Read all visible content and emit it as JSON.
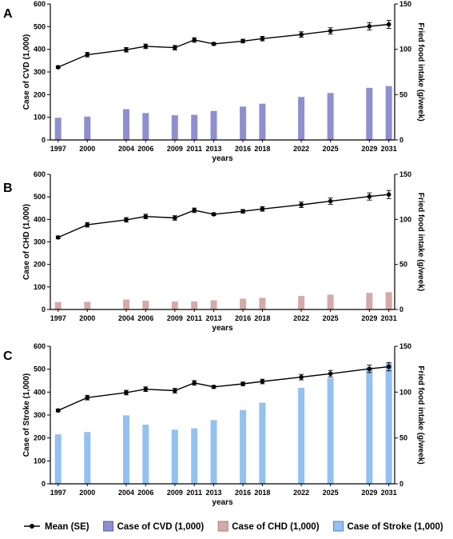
{
  "chart_data": [
    {
      "panel": "A",
      "type": "bar",
      "x": [
        "1997",
        "2000",
        "2004",
        "2006",
        "2009",
        "2011",
        "2013",
        "2016",
        "2018",
        "2022",
        "2025",
        "2029",
        "2031"
      ],
      "xlabel": "years",
      "ylabel_left": "Case of CVD (1,000)",
      "ylabel_right": "Fried food intake (g/week)",
      "ylim_left": [
        0,
        600
      ],
      "ylim_right": [
        0,
        150
      ],
      "left_ticks": [
        0,
        100,
        200,
        300,
        400,
        500,
        600
      ],
      "right_ticks": [
        0,
        50,
        100,
        150
      ],
      "bar_series": {
        "name": "Case of CVD (1,000)",
        "color": "#8e8fcf",
        "values": [
          98,
          103,
          136,
          119,
          109,
          111,
          128,
          147,
          160,
          190,
          207,
          230,
          238
        ]
      },
      "line_series": {
        "name": "Mean (SE)",
        "values": [
          80.3,
          94.1,
          99.5,
          103.3,
          101.8,
          110.3,
          106.0,
          109.1,
          111.8,
          116.3,
          120.3,
          125.4,
          127.5
        ],
        "se": [
          1.5,
          2.5,
          2.5,
          2.5,
          2.5,
          2.5,
          1.5,
          2.0,
          2.5,
          3.0,
          3.5,
          4.0,
          4.5
        ]
      }
    },
    {
      "panel": "B",
      "type": "bar",
      "x": [
        "1997",
        "2000",
        "2004",
        "2006",
        "2009",
        "2011",
        "2013",
        "2016",
        "2018",
        "2022",
        "2025",
        "2029",
        "2031"
      ],
      "xlabel": "years",
      "ylabel_left": "Case of CHD (1,000)",
      "ylabel_right": "Fried food intake (g/week)",
      "ylim_left": [
        0,
        600
      ],
      "ylim_right": [
        0,
        150
      ],
      "left_ticks": [
        0,
        100,
        200,
        300,
        400,
        500,
        600
      ],
      "right_ticks": [
        0,
        50,
        100,
        150
      ],
      "bar_series": {
        "name": "Case of CHD (1,000)",
        "color": "#d4aaa8",
        "values": [
          33,
          34,
          44,
          39,
          35,
          36,
          41,
          48,
          52,
          60,
          66,
          74,
          77
        ]
      },
      "line_series": {
        "name": "Mean (SE)",
        "values": [
          80.0,
          94.0,
          99.5,
          103.2,
          101.6,
          110.1,
          105.7,
          109.0,
          111.6,
          116.2,
          120.2,
          125.4,
          127.6
        ],
        "se": [
          1.5,
          2.5,
          2.5,
          2.5,
          2.5,
          2.5,
          1.5,
          2.0,
          2.5,
          3.0,
          3.5,
          4.0,
          4.5
        ]
      }
    },
    {
      "panel": "C",
      "type": "bar",
      "x": [
        "1997",
        "2000",
        "2004",
        "2006",
        "2009",
        "2011",
        "2013",
        "2016",
        "2018",
        "2022",
        "2025",
        "2029",
        "2031"
      ],
      "xlabel": "years",
      "ylabel_left": "Case of Stroke (1,000)",
      "ylabel_right": "Fried food intake (g/week)",
      "ylim_left": [
        0,
        600
      ],
      "ylim_right": [
        0,
        150
      ],
      "left_ticks": [
        0,
        100,
        200,
        300,
        400,
        500,
        600
      ],
      "right_ticks": [
        0,
        50,
        100,
        150
      ],
      "bar_series": {
        "name": "Case of Stroke (1,000)",
        "color": "#93c1f0",
        "values": [
          216,
          226,
          299,
          258,
          236,
          242,
          278,
          322,
          354,
          419,
          461,
          508,
          527
        ]
      },
      "line_series": {
        "name": "Mean (SE)",
        "values": [
          80.0,
          94.0,
          99.5,
          103.2,
          101.6,
          110.1,
          105.7,
          109.0,
          111.6,
          116.3,
          120.1,
          125.4,
          127.7
        ],
        "se": [
          1.5,
          2.5,
          2.5,
          2.5,
          2.5,
          2.5,
          1.5,
          2.0,
          2.5,
          3.0,
          3.5,
          4.0,
          4.5
        ]
      }
    }
  ],
  "legend": [
    {
      "kind": "line",
      "label": "Mean (SE)"
    },
    {
      "kind": "bar",
      "label": "Case of CVD (1,000)",
      "fill": "#8e8fcf",
      "stroke": "#5e5fa8"
    },
    {
      "kind": "bar",
      "label": "Case of CHD (1,000)",
      "fill": "#d4aaa8",
      "stroke": "#a97c7a"
    },
    {
      "kind": "bar",
      "label": "Case of Stroke (1,000)",
      "fill": "#93c1f0",
      "stroke": "#4f86c4"
    }
  ]
}
